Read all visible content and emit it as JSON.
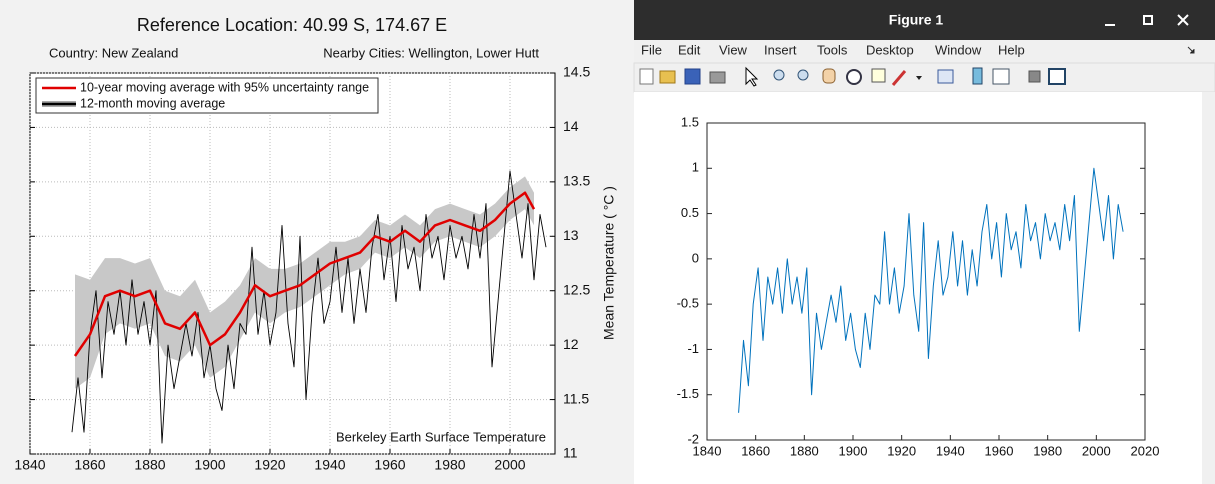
{
  "window": {
    "title": "Figure 1",
    "menu": [
      "File",
      "Edit",
      "View",
      "Insert",
      "Tools",
      "Desktop",
      "Window",
      "Help"
    ]
  },
  "chart_data": [
    {
      "type": "line",
      "title": "Reference Location: 40.99 S, 174.67 E",
      "subtitle_left": "Country: New Zealand",
      "subtitle_right": "Nearby Cities: Wellington, Lower Hutt",
      "annotation": "Berkeley Earth Surface Temperature",
      "ylabel": "Mean Temperature ( °C )",
      "y_axis_side": "right",
      "grid": true,
      "legend": "top-left",
      "xlim": [
        1840,
        2015
      ],
      "xticks": [
        1840,
        1860,
        1880,
        1900,
        1920,
        1940,
        1960,
        1980,
        2000
      ],
      "ylim": [
        11,
        14.5
      ],
      "yticks": [
        11,
        11.5,
        12,
        12.5,
        13,
        13.5,
        14,
        14.5
      ],
      "series": [
        {
          "name": "10-year moving average with 95% uncertainty range",
          "color": "#e00000",
          "band_color": "#c8c8c8",
          "x": [
            1855,
            1860,
            1865,
            1870,
            1875,
            1880,
            1885,
            1890,
            1895,
            1900,
            1905,
            1910,
            1915,
            1920,
            1925,
            1930,
            1935,
            1940,
            1945,
            1950,
            1955,
            1960,
            1965,
            1970,
            1975,
            1980,
            1985,
            1990,
            1995,
            2000,
            2005,
            2008
          ],
          "values": [
            11.9,
            12.1,
            12.45,
            12.5,
            12.45,
            12.5,
            12.2,
            12.15,
            12.3,
            12.0,
            12.1,
            12.3,
            12.55,
            12.45,
            12.5,
            12.55,
            12.65,
            12.75,
            12.8,
            12.85,
            13.0,
            12.95,
            13.05,
            12.95,
            13.1,
            13.15,
            13.1,
            13.05,
            13.15,
            13.3,
            13.4,
            13.25
          ],
          "upper": [
            12.65,
            12.6,
            12.8,
            12.8,
            12.75,
            12.8,
            12.5,
            12.45,
            12.6,
            12.3,
            12.4,
            12.55,
            12.8,
            12.7,
            12.7,
            12.75,
            12.85,
            12.95,
            12.95,
            13.0,
            13.15,
            13.1,
            13.2,
            13.1,
            13.25,
            13.3,
            13.25,
            13.2,
            13.3,
            13.45,
            13.55,
            13.4
          ],
          "lower": [
            11.6,
            11.7,
            12.1,
            12.2,
            12.15,
            12.2,
            11.9,
            11.85,
            12.0,
            11.7,
            11.8,
            12.05,
            12.3,
            12.2,
            12.3,
            12.35,
            12.45,
            12.55,
            12.65,
            12.7,
            12.85,
            12.8,
            12.9,
            12.8,
            12.95,
            13.0,
            12.95,
            12.9,
            13.0,
            13.15,
            13.25,
            13.1
          ]
        },
        {
          "name": "12-month moving average",
          "color": "#000000",
          "x": [
            1854,
            1856,
            1858,
            1860,
            1862,
            1864,
            1866,
            1868,
            1870,
            1872,
            1874,
            1876,
            1878,
            1880,
            1882,
            1884,
            1886,
            1888,
            1890,
            1892,
            1894,
            1896,
            1898,
            1900,
            1902,
            1904,
            1906,
            1908,
            1910,
            1912,
            1914,
            1916,
            1918,
            1920,
            1922,
            1924,
            1926,
            1928,
            1930,
            1932,
            1934,
            1936,
            1938,
            1940,
            1942,
            1944,
            1946,
            1948,
            1950,
            1952,
            1954,
            1956,
            1958,
            1960,
            1962,
            1964,
            1966,
            1968,
            1970,
            1972,
            1974,
            1976,
            1978,
            1980,
            1982,
            1984,
            1986,
            1988,
            1990,
            1992,
            1994,
            1996,
            1998,
            2000,
            2002,
            2004,
            2006,
            2008,
            2010,
            2012
          ],
          "values": [
            11.2,
            11.7,
            11.2,
            12.1,
            12.5,
            11.7,
            12.4,
            12.1,
            12.5,
            12.0,
            12.6,
            12.1,
            12.4,
            12.0,
            12.5,
            11.1,
            12.0,
            11.6,
            11.9,
            12.2,
            11.9,
            12.3,
            11.7,
            12.0,
            11.6,
            11.4,
            12.0,
            11.6,
            12.2,
            12.1,
            12.9,
            12.1,
            12.5,
            12.0,
            12.3,
            13.1,
            12.2,
            11.8,
            13.0,
            11.5,
            12.3,
            12.8,
            12.2,
            12.4,
            12.9,
            12.3,
            12.8,
            12.2,
            12.7,
            12.3,
            12.9,
            13.2,
            12.6,
            13.0,
            12.4,
            13.1,
            12.7,
            12.9,
            12.5,
            13.2,
            12.8,
            13.0,
            12.6,
            13.1,
            12.8,
            13.0,
            12.7,
            13.2,
            12.8,
            13.3,
            11.8,
            12.4,
            13.0,
            13.6,
            13.2,
            12.8,
            13.3,
            12.6,
            13.2,
            12.9
          ]
        }
      ]
    },
    {
      "type": "line",
      "grid": false,
      "xlim": [
        1840,
        2020
      ],
      "xticks": [
        1840,
        1860,
        1880,
        1900,
        1920,
        1940,
        1960,
        1980,
        2000,
        2020
      ],
      "ylim": [
        -2,
        1.5
      ],
      "yticks": [
        -2,
        -1.5,
        -1,
        -0.5,
        0,
        0.5,
        1,
        1.5
      ],
      "series": [
        {
          "color": "#0072bd",
          "x": [
            1853,
            1855,
            1857,
            1859,
            1861,
            1863,
            1865,
            1867,
            1869,
            1871,
            1873,
            1875,
            1877,
            1879,
            1881,
            1883,
            1885,
            1887,
            1889,
            1891,
            1893,
            1895,
            1897,
            1899,
            1901,
            1903,
            1905,
            1907,
            1909,
            1911,
            1913,
            1915,
            1917,
            1919,
            1921,
            1923,
            1925,
            1927,
            1929,
            1931,
            1933,
            1935,
            1937,
            1939,
            1941,
            1943,
            1945,
            1947,
            1949,
            1951,
            1953,
            1955,
            1957,
            1959,
            1961,
            1963,
            1965,
            1967,
            1969,
            1971,
            1973,
            1975,
            1977,
            1979,
            1981,
            1983,
            1985,
            1987,
            1989,
            1991,
            1993,
            1995,
            1997,
            1999,
            2001,
            2003,
            2005,
            2007,
            2009,
            2011
          ],
          "values": [
            -1.7,
            -0.9,
            -1.4,
            -0.5,
            -0.1,
            -0.9,
            -0.2,
            -0.5,
            -0.1,
            -0.6,
            0.0,
            -0.5,
            -0.2,
            -0.6,
            -0.1,
            -1.5,
            -0.6,
            -1.0,
            -0.7,
            -0.4,
            -0.7,
            -0.3,
            -0.9,
            -0.6,
            -1.0,
            -1.2,
            -0.6,
            -1.0,
            -0.4,
            -0.5,
            0.3,
            -0.5,
            -0.1,
            -0.6,
            -0.3,
            0.5,
            -0.4,
            -0.8,
            0.4,
            -1.1,
            -0.3,
            0.2,
            -0.4,
            -0.2,
            0.3,
            -0.3,
            0.2,
            -0.4,
            0.1,
            -0.3,
            0.3,
            0.6,
            0.0,
            0.4,
            -0.2,
            0.5,
            0.1,
            0.3,
            -0.1,
            0.6,
            0.2,
            0.4,
            0.0,
            0.5,
            0.2,
            0.4,
            0.1,
            0.6,
            0.2,
            0.7,
            -0.8,
            -0.2,
            0.4,
            1.0,
            0.6,
            0.2,
            0.7,
            0.0,
            0.6,
            0.3
          ]
        }
      ]
    }
  ]
}
